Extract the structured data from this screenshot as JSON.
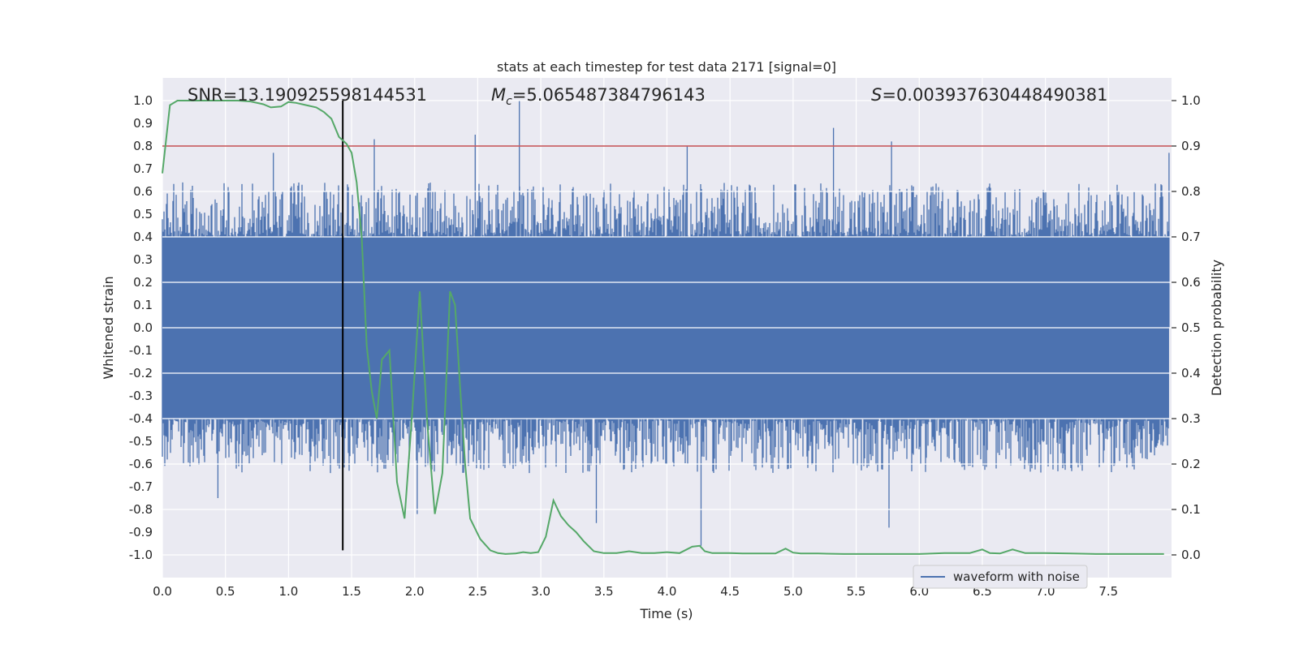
{
  "chart_data": {
    "type": "line",
    "title": "stats at each timestep for test data 2171 [signal=0]",
    "xlabel": "Time (s)",
    "ylabel_left": "Whitened strain",
    "ylabel_right": "Detection probability",
    "xlim": [
      0.0,
      8.0
    ],
    "ylim_left": [
      -1.1,
      1.1
    ],
    "ylim_right": [
      -0.05,
      1.05
    ],
    "x_ticks": [
      "0.0",
      "0.5",
      "1.0",
      "1.5",
      "2.0",
      "2.5",
      "3.0",
      "3.5",
      "4.0",
      "4.5",
      "5.0",
      "5.5",
      "6.0",
      "6.5",
      "7.0",
      "7.5"
    ],
    "y_ticks_left": [
      "1.0",
      "0.9",
      "0.8",
      "0.7",
      "0.6",
      "0.5",
      "0.4",
      "0.3",
      "0.2",
      "0.1",
      "0.0",
      "-0.1",
      "-0.2",
      "-0.3",
      "-0.4",
      "-0.5",
      "-0.6",
      "-0.7",
      "-0.8",
      "-0.9",
      "-1.0"
    ],
    "y_ticks_right": [
      "1.0",
      "0.9",
      "0.8",
      "0.7",
      "0.6",
      "0.5",
      "0.4",
      "0.3",
      "0.2",
      "0.1",
      "0.0"
    ],
    "grid": true,
    "legend": {
      "location": "lower-right",
      "entries": [
        "waveform with noise"
      ]
    },
    "annotations": {
      "snr": "SNR=13.190925598144531",
      "mc_prefix": "M",
      "mc_sub": "c",
      "mc_value": "=5.065487384796143",
      "s_prefix": "S",
      "s_value": "=0.003937630448490381"
    },
    "threshold_line": {
      "axis": "right",
      "value": 0.9,
      "color": "#c44e52"
    },
    "vertical_marker": {
      "x": 1.43,
      "color": "#000000"
    },
    "series": [
      {
        "name": "waveform with noise",
        "axis": "left",
        "color": "#4c72b0",
        "kind": "noise",
        "duration": 7.98,
        "envelope": {
          "dense": 0.4,
          "typical_peak": 0.55,
          "max": 1.0,
          "min": -0.96
        },
        "peaks": [
          {
            "x": 2.83,
            "y": 1.0
          },
          {
            "x": 2.48,
            "y": 0.85
          },
          {
            "x": 5.32,
            "y": 0.88
          },
          {
            "x": 0.88,
            "y": 0.77
          },
          {
            "x": 1.68,
            "y": 0.83
          },
          {
            "x": 4.16,
            "y": 0.8
          },
          {
            "x": 5.78,
            "y": 0.82
          },
          {
            "x": 7.98,
            "y": 0.77
          },
          {
            "x": 4.27,
            "y": -0.96
          },
          {
            "x": 3.44,
            "y": -0.86
          },
          {
            "x": 5.76,
            "y": -0.88
          },
          {
            "x": 2.02,
            "y": -0.82
          },
          {
            "x": 0.44,
            "y": -0.75
          }
        ]
      },
      {
        "name": "detection probability",
        "axis": "right",
        "color": "#55a868",
        "x": [
          0.0,
          0.06,
          0.12,
          0.2,
          0.3,
          0.4,
          0.5,
          0.6,
          0.7,
          0.8,
          0.86,
          0.94,
          1.0,
          1.06,
          1.14,
          1.22,
          1.28,
          1.34,
          1.4,
          1.46,
          1.5,
          1.54,
          1.58,
          1.62,
          1.66,
          1.7,
          1.74,
          1.8,
          1.86,
          1.92,
          1.98,
          2.04,
          2.1,
          2.16,
          2.22,
          2.28,
          2.32,
          2.36,
          2.4,
          2.44,
          2.52,
          2.6,
          2.66,
          2.72,
          2.8,
          2.86,
          2.92,
          2.98,
          3.04,
          3.1,
          3.16,
          3.22,
          3.28,
          3.34,
          3.42,
          3.5,
          3.6,
          3.7,
          3.8,
          3.9,
          4.0,
          4.1,
          4.2,
          4.26,
          4.3,
          4.36,
          4.5,
          4.6,
          4.7,
          4.8,
          4.86,
          4.94,
          5.0,
          5.06,
          5.2,
          5.4,
          5.6,
          5.8,
          6.0,
          6.2,
          6.4,
          6.5,
          6.56,
          6.64,
          6.74,
          6.84,
          7.0,
          7.2,
          7.4,
          7.6,
          7.8,
          7.94
        ],
        "y": [
          0.84,
          0.99,
          1.0,
          1.0,
          1.0,
          1.0,
          1.0,
          1.0,
          0.998,
          0.992,
          0.985,
          0.987,
          0.997,
          0.995,
          0.99,
          0.985,
          0.975,
          0.96,
          0.92,
          0.905,
          0.885,
          0.82,
          0.7,
          0.46,
          0.36,
          0.3,
          0.43,
          0.45,
          0.16,
          0.08,
          0.31,
          0.58,
          0.29,
          0.09,
          0.18,
          0.58,
          0.55,
          0.37,
          0.2,
          0.08,
          0.035,
          0.01,
          0.004,
          0.002,
          0.003,
          0.006,
          0.004,
          0.006,
          0.04,
          0.12,
          0.085,
          0.065,
          0.05,
          0.03,
          0.008,
          0.004,
          0.004,
          0.008,
          0.004,
          0.004,
          0.006,
          0.004,
          0.018,
          0.02,
          0.008,
          0.004,
          0.004,
          0.003,
          0.003,
          0.003,
          0.003,
          0.014,
          0.005,
          0.003,
          0.003,
          0.002,
          0.002,
          0.002,
          0.002,
          0.004,
          0.004,
          0.012,
          0.004,
          0.003,
          0.012,
          0.004,
          0.004,
          0.003,
          0.002,
          0.002,
          0.002,
          0.002
        ]
      }
    ]
  }
}
